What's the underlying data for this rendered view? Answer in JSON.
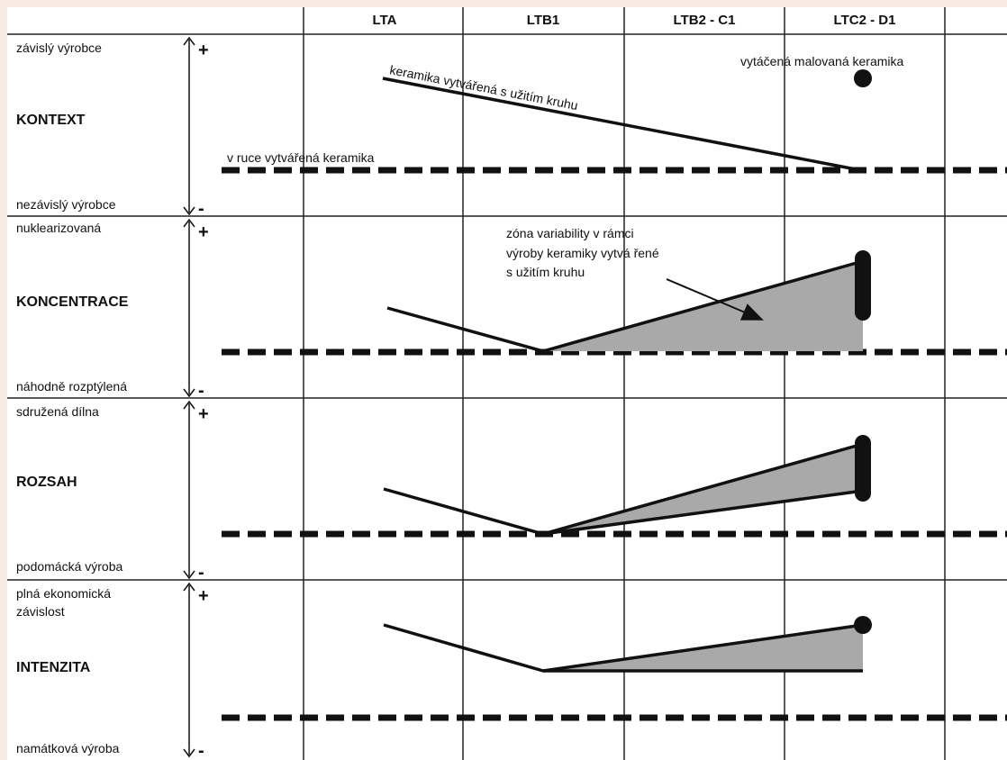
{
  "columns": [
    "LTA",
    "LTB1",
    "LTB2 - C1",
    "LTC2 - D1"
  ],
  "panels": [
    {
      "top": "závislý výrobce",
      "title": "KONTEXT",
      "bottom": "nezávislý výrobce"
    },
    {
      "top": "nuklearizovaná",
      "title": "KONCENTRACE",
      "bottom": "náhodně rozptýlená"
    },
    {
      "top": "sdružená dílna",
      "title": "ROZSAH",
      "bottom": "podomácká výroba"
    },
    {
      "top_line1": "plná ekonomická",
      "top_line2": "závislost",
      "title": "INTENZITA",
      "bottom": "namátková výroba"
    }
  ],
  "signs": {
    "plus": "+",
    "minus": "-"
  },
  "annotations": {
    "kontext_wheel": "keramika vytvářená s užitím kruhu",
    "kontext_hand": "v ruce vytvářená keramika",
    "kontext_painted": "vytáčená malovaná keramika",
    "zone_line1": "zóna variability v rámci",
    "zone_line2": "výroby keramiky vytvá řené",
    "zone_line3": "s užitím kruhu"
  },
  "colors": {
    "line": "#111111",
    "zone_fill": "#a9a9a9",
    "grid": "#222222",
    "background": "#ffffff",
    "border": "#f2e4d9"
  }
}
